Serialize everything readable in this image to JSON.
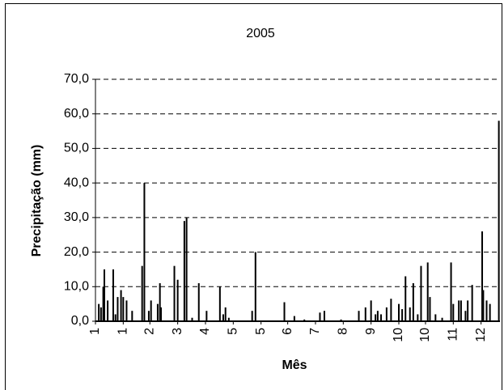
{
  "chart_data": {
    "type": "bar",
    "title": "2005",
    "x_label": "Mês",
    "y_label": "Precipitação (mm)",
    "color": "#000000",
    "grid": true,
    "x": [
      4,
      6,
      8,
      9,
      12,
      17,
      19,
      21,
      24,
      26,
      29,
      34,
      43,
      45,
      49,
      51,
      57,
      59,
      60,
      72,
      75,
      81,
      83,
      88,
      94,
      101,
      113,
      116,
      118,
      121,
      142,
      145,
      171,
      180,
      189,
      203,
      207,
      222,
      238,
      244,
      249,
      253,
      255,
      258,
      263,
      267,
      274,
      277,
      280,
      284,
      287,
      291,
      294,
      300,
      302,
      307,
      313,
      321,
      323,
      328,
      330,
      334,
      336,
      340,
      349,
      350,
      353,
      356,
      364
    ],
    "values": [
      5,
      4,
      10,
      15,
      6,
      15,
      2,
      7,
      9,
      7,
      6,
      3,
      16,
      40,
      3,
      6,
      5,
      11,
      4,
      16,
      12,
      29,
      30,
      1,
      11,
      3,
      10,
      2,
      4,
      1,
      3,
      20,
      5.5,
      1.5,
      0.5,
      2.5,
      3,
      0.5,
      3,
      4,
      6,
      2,
      3,
      2,
      4,
      6.5,
      5,
      3.5,
      13,
      4,
      11,
      2,
      16,
      17,
      7,
      2,
      1,
      17,
      5,
      6,
      6,
      3,
      6,
      10.5,
      26,
      9,
      6,
      5,
      58
    ],
    "xlim": [
      1,
      365
    ],
    "xticks": [
      {
        "value": 1,
        "label": "1"
      },
      {
        "value": 26,
        "label": "1"
      },
      {
        "value": 50,
        "label": "2"
      },
      {
        "value": 75,
        "label": "3"
      },
      {
        "value": 100,
        "label": "4"
      },
      {
        "value": 125,
        "label": "5"
      },
      {
        "value": 150,
        "label": "5"
      },
      {
        "value": 174,
        "label": "6"
      },
      {
        "value": 199,
        "label": "7"
      },
      {
        "value": 224,
        "label": "8"
      },
      {
        "value": 249,
        "label": "9"
      },
      {
        "value": 274,
        "label": "10"
      },
      {
        "value": 298,
        "label": "10"
      },
      {
        "value": 323,
        "label": "11"
      },
      {
        "value": 348,
        "label": "12"
      }
    ],
    "ylim": [
      0,
      70
    ],
    "yticks": [
      {
        "value": 0,
        "label": "0,0"
      },
      {
        "value": 10,
        "label": "10,0"
      },
      {
        "value": 20,
        "label": "20,0"
      },
      {
        "value": 30,
        "label": "30,0"
      },
      {
        "value": 40,
        "label": "40,0"
      },
      {
        "value": 50,
        "label": "50,0"
      },
      {
        "value": 60,
        "label": "60,0"
      },
      {
        "value": 70,
        "label": "70,0"
      }
    ]
  }
}
